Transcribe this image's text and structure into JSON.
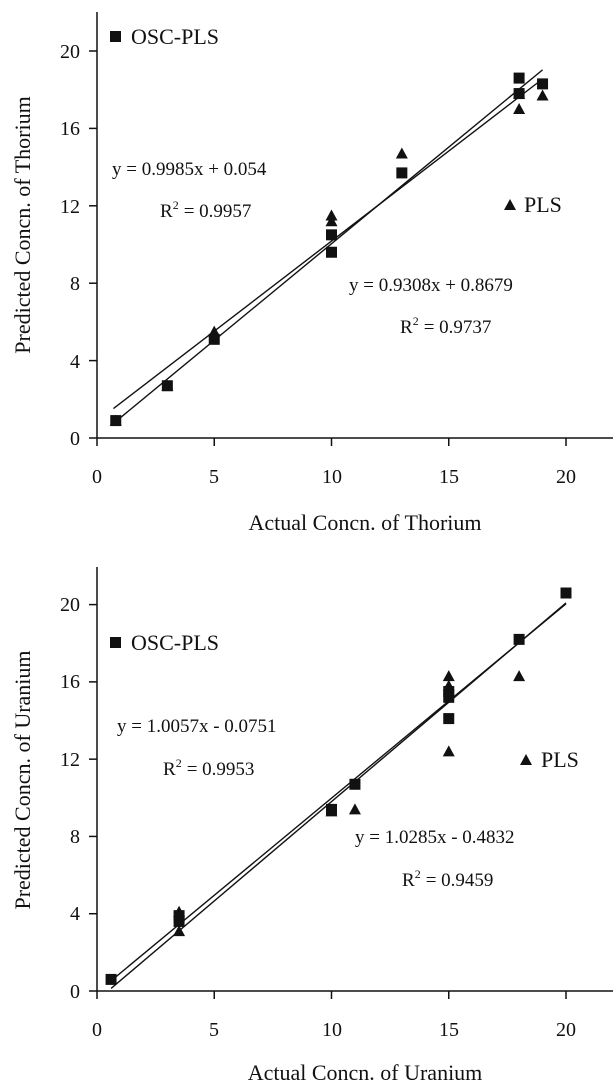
{
  "chart_data": [
    {
      "type": "scatter",
      "xlabel": "Actual Concn. of Thorium",
      "ylabel": "Predicted Concn. of Thorium",
      "xlim": [
        0,
        22
      ],
      "ylim": [
        0,
        22
      ],
      "xticks": [
        "0",
        "5",
        "10",
        "15",
        "20"
      ],
      "yticks": [
        "0",
        "4",
        "8",
        "12",
        "16",
        "20"
      ],
      "grid": false,
      "series": [
        {
          "name": "OSC-PLS",
          "marker": "square",
          "points": [
            [
              0.8,
              0.9
            ],
            [
              3,
              2.7
            ],
            [
              5,
              5.1
            ],
            [
              10,
              10.5
            ],
            [
              10,
              9.6
            ],
            [
              13,
              13.7
            ],
            [
              18,
              18.6
            ],
            [
              18,
              17.8
            ],
            [
              19,
              18.3
            ]
          ],
          "fit": {
            "slope": 0.9985,
            "intercept": 0.054
          },
          "equation": "y = 0.9985x + 0.054",
          "r2_label": "R",
          "r2_value": "= 0.9957"
        },
        {
          "name": "PLS",
          "marker": "triangle",
          "points": [
            [
              0.8,
              0.9
            ],
            [
              3,
              2.7
            ],
            [
              5,
              5.5
            ],
            [
              10,
              11.5
            ],
            [
              10,
              11.2
            ],
            [
              13,
              14.7
            ],
            [
              18,
              17.0
            ],
            [
              18,
              17.8
            ],
            [
              19,
              17.7
            ]
          ],
          "fit": {
            "slope": 0.9308,
            "intercept": 0.8679
          },
          "equation": "y = 0.9308x + 0.8679",
          "r2_label": "R",
          "r2_value": "= 0.9737"
        }
      ],
      "fit_range": [
        0.7,
        19
      ]
    },
    {
      "type": "scatter",
      "xlabel": "Actual Concn. of Uranium",
      "ylabel": "Predicted Concn. of Uranium",
      "xlim": [
        0,
        22
      ],
      "ylim": [
        0,
        22
      ],
      "xticks": [
        "0",
        "5",
        "10",
        "15",
        "20"
      ],
      "yticks": [
        "0",
        "4",
        "8",
        "12",
        "16",
        "20"
      ],
      "grid": false,
      "series": [
        {
          "name": "OSC-PLS",
          "marker": "square",
          "points": [
            [
              0.6,
              0.6
            ],
            [
              3.5,
              3.6
            ],
            [
              3.5,
              3.9
            ],
            [
              10,
              9.4
            ],
            [
              11,
              10.7
            ],
            [
              15,
              15.5
            ],
            [
              15,
              15.2
            ],
            [
              15,
              14.1
            ],
            [
              18,
              18.2
            ],
            [
              20,
              20.6
            ]
          ],
          "fit": {
            "slope": 1.0057,
            "intercept": -0.0751
          },
          "equation": "y = 1.0057x - 0.0751",
          "r2_label": "R",
          "r2_value": "= 0.9953"
        },
        {
          "name": "PLS",
          "marker": "triangle",
          "points": [
            [
              3.5,
              4.1
            ],
            [
              3.5,
              3.1
            ],
            [
              10,
              9.3
            ],
            [
              11,
              9.4
            ],
            [
              15,
              16.3
            ],
            [
              15,
              15.8
            ],
            [
              15,
              12.4
            ],
            [
              18,
              16.3
            ]
          ],
          "fit": {
            "slope": 1.0285,
            "intercept": -0.4832
          },
          "equation": "y = 1.0285x - 0.4832",
          "r2_label": "R",
          "r2_value": "= 0.9459"
        }
      ],
      "fit_range": [
        0.6,
        20
      ]
    }
  ]
}
